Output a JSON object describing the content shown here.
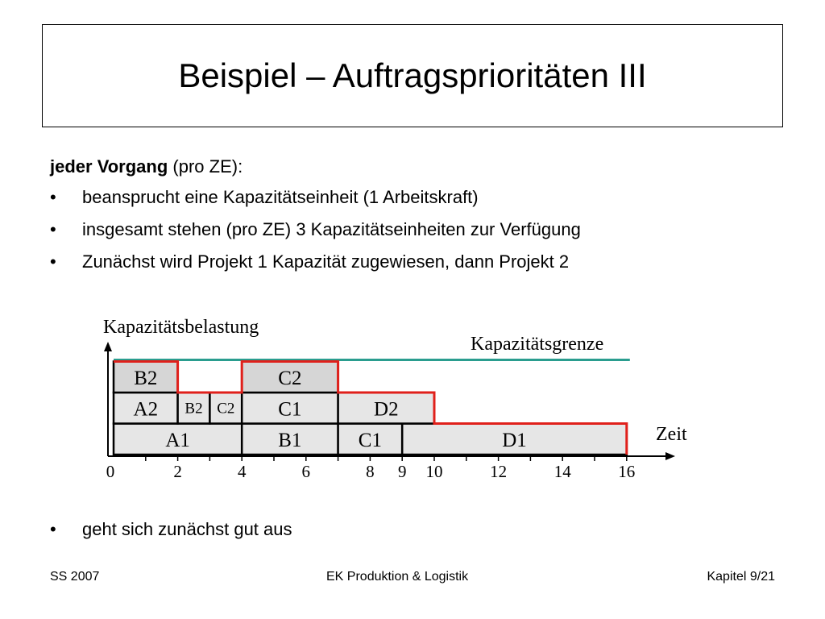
{
  "slide": {
    "title": "Beispiel – Auftragsprioritäten III",
    "intro_bold": "jeder Vorgang",
    "intro_rest": " (pro ZE):",
    "bullets": [
      "beansprucht eine Kapazitätseinheit (1 Arbeitskraft)",
      "insgesamt stehen (pro ZE) 3 Kapazitätseinheiten zur Verfügung",
      "Zunächst wird Projekt 1 Kapazität zugewiesen, dann Projekt 2"
    ],
    "bullet_after": "geht sich zunächst gut aus",
    "bullet_char": "•"
  },
  "diagram": {
    "y_axis_label": "Kapazitätsbelastung",
    "x_axis_label": "Zeit",
    "limit_label": "Kapazitätsgrenze",
    "capacity_limit": 3,
    "x_max": 16,
    "tick_labels": [
      "0",
      "2",
      "4",
      "6",
      "8",
      "9",
      "10",
      "12",
      "14",
      "16"
    ],
    "tick_values": [
      0,
      2,
      4,
      6,
      8,
      9,
      10,
      12,
      14,
      16
    ],
    "blocks": [
      {
        "label": "A1",
        "start": 0,
        "end": 4,
        "level": 0
      },
      {
        "label": "B1",
        "start": 4,
        "end": 7,
        "level": 0
      },
      {
        "label": "C1",
        "start": 7,
        "end": 9,
        "level": 0
      },
      {
        "label": "D1",
        "start": 9,
        "end": 16,
        "level": 0
      },
      {
        "label": "A2",
        "start": 0,
        "end": 2,
        "level": 1
      },
      {
        "label": "B2",
        "start": 2,
        "end": 3,
        "level": 1
      },
      {
        "label": "C2",
        "start": 3,
        "end": 4,
        "level": 1
      },
      {
        "label": "C1",
        "start": 4,
        "end": 7,
        "level": 1
      },
      {
        "label": "D2",
        "start": 7,
        "end": 10,
        "level": 1
      },
      {
        "label": "B2",
        "start": 0,
        "end": 2,
        "level": 2
      },
      {
        "label": "C2",
        "start": 4,
        "end": 7,
        "level": 2
      }
    ],
    "load_profile": [
      [
        0,
        3
      ],
      [
        2,
        2
      ],
      [
        4,
        3
      ],
      [
        7,
        2
      ],
      [
        10,
        1
      ],
      [
        16,
        0
      ]
    ],
    "colors": {
      "limit": "#2a9d8f",
      "load": "#e0201b",
      "block_fill": "#e6e6e6",
      "block_fill_top": "#d6d6d6"
    }
  },
  "footer": {
    "left": "SS 2007",
    "center": "EK Produktion & Logistik",
    "right": "Kapitel 9/21"
  }
}
